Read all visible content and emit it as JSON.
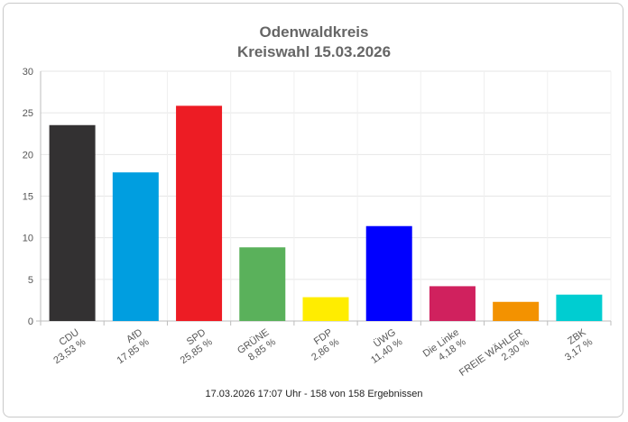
{
  "title": "Odenwaldkreis",
  "subtitle": "Kreiswahl 15.03.2026",
  "footer": "17.03.2026 17:07 Uhr - 158 von 158 Ergebnissen",
  "chart_data": {
    "type": "bar",
    "categories": [
      "CDU",
      "AfD",
      "SPD",
      "GRÜNE",
      "FDP",
      "ÜWG",
      "Die Linke",
      "FREIE WÄHLER",
      "ZBK"
    ],
    "values": [
      23.53,
      17.85,
      25.85,
      8.85,
      2.86,
      11.4,
      4.18,
      2.3,
      3.17
    ],
    "value_labels": [
      "23,53 %",
      "17,85 %",
      "25,85 %",
      "8,85 %",
      "2,86 %",
      "11,40 %",
      "4,18 %",
      "2,30 %",
      "3,17 %"
    ],
    "colors": [
      "#333132",
      "#009ee0",
      "#ed1c24",
      "#5ab15b",
      "#ffed00",
      "#0000ff",
      "#d0215e",
      "#f39200",
      "#00cdd1"
    ],
    "ylim": [
      0,
      30
    ],
    "yticks": [
      0,
      5,
      10,
      15,
      20,
      25,
      30
    ],
    "grid": true,
    "legend": "none"
  }
}
